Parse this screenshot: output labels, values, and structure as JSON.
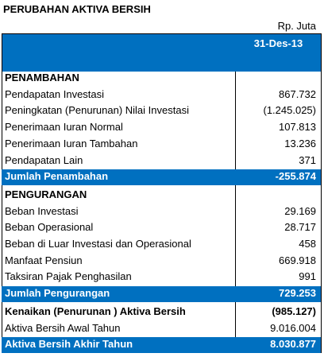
{
  "header": {
    "title": "PERUBAHAN AKTIVA BERSIH",
    "unit": "Rp. Juta",
    "column": "31-Des-13"
  },
  "sections": [
    {
      "heading": "PENAMBAHAN",
      "rows": [
        [
          "Pendapatan Investasi",
          "867.732"
        ],
        [
          "Peningkatan (Penurunan) Nilai Investasi",
          "(1.245.025)"
        ],
        [
          "Penerimaan Iuran Normal",
          "107.813"
        ],
        [
          "Penerimaan Iuran Tambahan",
          "13.236"
        ],
        [
          "Pendapatan Lain",
          "371"
        ]
      ],
      "total": [
        "Jumlah Penambahan",
        "-255.874"
      ]
    },
    {
      "heading": "PENGURANGAN",
      "rows": [
        [
          "Beban Investasi",
          "29.169"
        ],
        [
          "Beban Operasional",
          "28.717"
        ],
        [
          "Beban di Luar Investasi dan Operasional",
          "458"
        ],
        [
          "Manfaat Pensiun",
          "669.918"
        ],
        [
          "Taksiran Pajak Penghasilan",
          "991"
        ]
      ],
      "total": [
        "Jumlah Pengurangan",
        "729.253"
      ]
    }
  ],
  "summary": {
    "change": [
      "Kenaikan (Penurunan ) Aktiva Bersih",
      "(985.127)"
    ],
    "opening": [
      "Aktiva Bersih Awal Tahun",
      "9.016.004"
    ],
    "closing": [
      "Aktiva Bersih Akhir Tahun",
      "8.030.877"
    ]
  }
}
